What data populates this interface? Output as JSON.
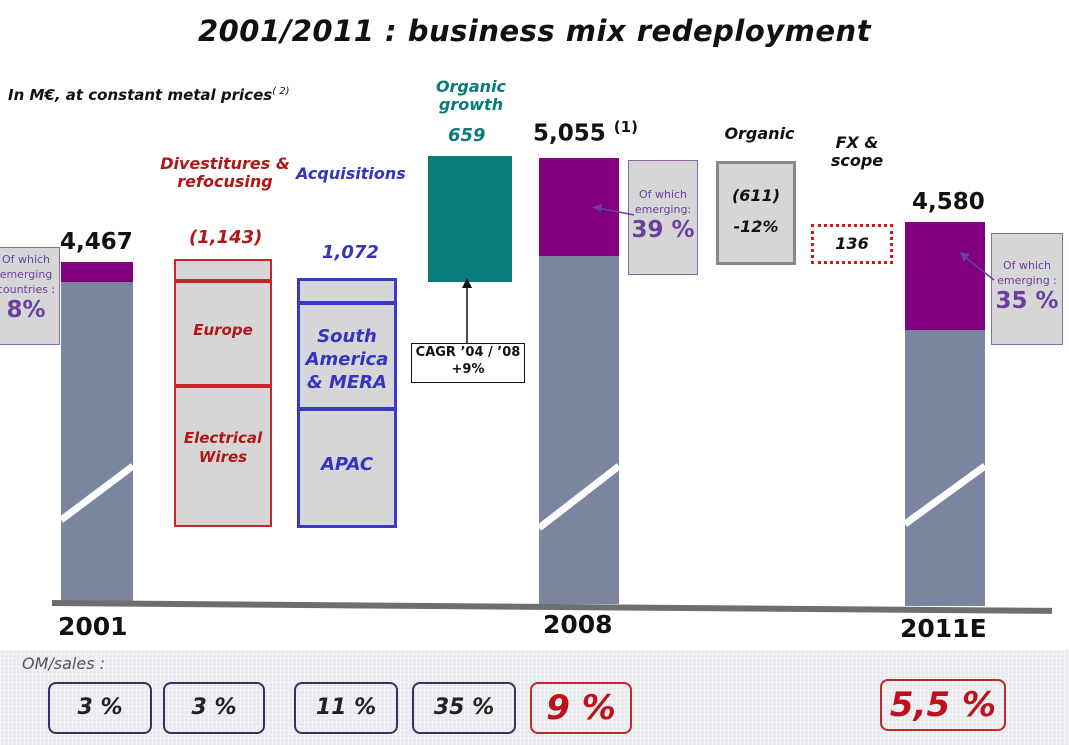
{
  "chart_data": {
    "type": "bar",
    "title": "2001/2011 : business mix redeployment",
    "subtitle": "In M€, at constant metal prices",
    "subtitle_note": "( 2)",
    "unit": "M€",
    "bars": [
      {
        "category": "2001",
        "value": "4,467",
        "numeric": 4467,
        "emerging_share_pct": 8,
        "callout": {
          "text": "Of which emerging countries :",
          "pct": "8%"
        }
      },
      {
        "category": "Divestitures & refocusing",
        "value": "(1,143)",
        "numeric": -1143,
        "segments": [
          "Europe",
          "Electrical Wires"
        ]
      },
      {
        "category": "Acquisitions",
        "value": "1,072",
        "numeric": 1072,
        "segments": [
          "South America & MERA",
          "APAC"
        ]
      },
      {
        "category": "Organic growth",
        "value": "659",
        "numeric": 659,
        "note": "CAGR '04 / '08 +9%"
      },
      {
        "category": "2008",
        "value": "5,055",
        "note": "(1)",
        "numeric": 5055,
        "emerging_share_pct": 39,
        "callout": {
          "text": "Of which emerging:",
          "pct": "39 %"
        }
      },
      {
        "category": "Organic",
        "value": "(611)",
        "numeric": -611,
        "change": "-12%"
      },
      {
        "category": "FX & scope",
        "value": "136",
        "numeric": 136
      },
      {
        "category": "2011E",
        "value": "4,580",
        "numeric": 4580,
        "emerging_share_pct": 35,
        "callout": {
          "text": "Of which emerging :",
          "pct": "35 %"
        }
      }
    ],
    "colors": {
      "base": "#7a869f",
      "emerging": "#800080",
      "divestitures": "#c0282a",
      "acquisitions": "#3939c8",
      "organic_growth": "#0a7b7b"
    },
    "om_sales": {
      "label": "OM/sales :",
      "values": [
        "3 %",
        "3 %",
        "11 %",
        "35 %",
        "9 %",
        "5,5 %"
      ]
    }
  },
  "text": {
    "years": {
      "y2001": "2001",
      "y2008": "2008",
      "y2011": "2011E"
    },
    "headers": {
      "divest_1": "Divestitures &",
      "divest_2": "refocusing",
      "acq": "Acquisitions",
      "organic_growth_1": "Organic",
      "organic_growth_2": "growth",
      "organic": "Organic",
      "fx_1": "FX &",
      "fx_2": "scope"
    },
    "cagr_1": "CAGR ’04 / ’08",
    "cagr_2": "+9%",
    "callout_2001_1": "Of which",
    "callout_2001_2": "emerging",
    "callout_2001_3": "countries :",
    "callout_2008_1": "Of which",
    "callout_2008_2": "emerging:",
    "callout_2011_1": "Of which",
    "callout_2011_2": "emerging :",
    "seg_europe": "Europe",
    "seg_elec_1": "Electrical",
    "seg_elec_2": "Wires",
    "seg_sa_1": "South",
    "seg_sa_2": "America",
    "seg_sa_3": "& MERA",
    "seg_apac": "APAC"
  }
}
